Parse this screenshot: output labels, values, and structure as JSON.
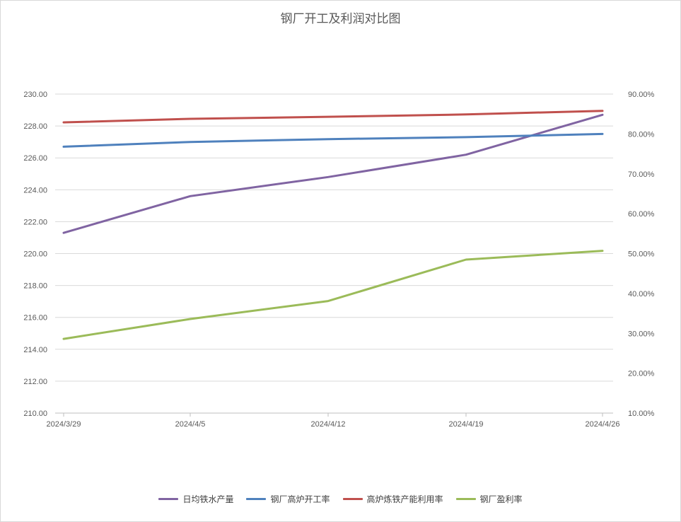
{
  "chart_data": {
    "type": "line",
    "title": "钢厂开工及利润对比图",
    "categories": [
      "2024/3/29",
      "2024/4/5",
      "2024/4/12",
      "2024/4/19",
      "2024/4/26"
    ],
    "y_left": {
      "min": 210,
      "max": 230,
      "step": 2,
      "tick_labels": [
        "230.00",
        "228.00",
        "226.00",
        "224.00",
        "222.00",
        "220.00",
        "218.00",
        "216.00",
        "214.00",
        "212.00",
        "210.00"
      ]
    },
    "y_right": {
      "min": 10,
      "max": 90,
      "step": 10,
      "tick_labels": [
        "90.00%",
        "80.00%",
        "70.00%",
        "60.00%",
        "50.00%",
        "40.00%",
        "30.00%",
        "20.00%",
        "10.00%"
      ]
    },
    "grid": true,
    "legend_position": "bottom",
    "series": [
      {
        "name": "日均铁水产量",
        "axis": "left",
        "color": "#8064A2",
        "values": [
          221.3,
          223.6,
          224.8,
          226.2,
          228.7
        ]
      },
      {
        "name": "钢厂高炉开工率",
        "axis": "right",
        "color": "#4F81BD",
        "values": [
          76.8,
          78.0,
          78.7,
          79.2,
          80.0
        ]
      },
      {
        "name": "高炉炼铁产能利用率",
        "axis": "right",
        "color": "#C0504D",
        "values": [
          82.9,
          83.8,
          84.3,
          84.9,
          85.8
        ]
      },
      {
        "name": "钢厂盈利率",
        "axis": "right",
        "color": "#9BBB59",
        "values": [
          28.6,
          33.6,
          38.1,
          48.5,
          50.7
        ]
      }
    ]
  }
}
